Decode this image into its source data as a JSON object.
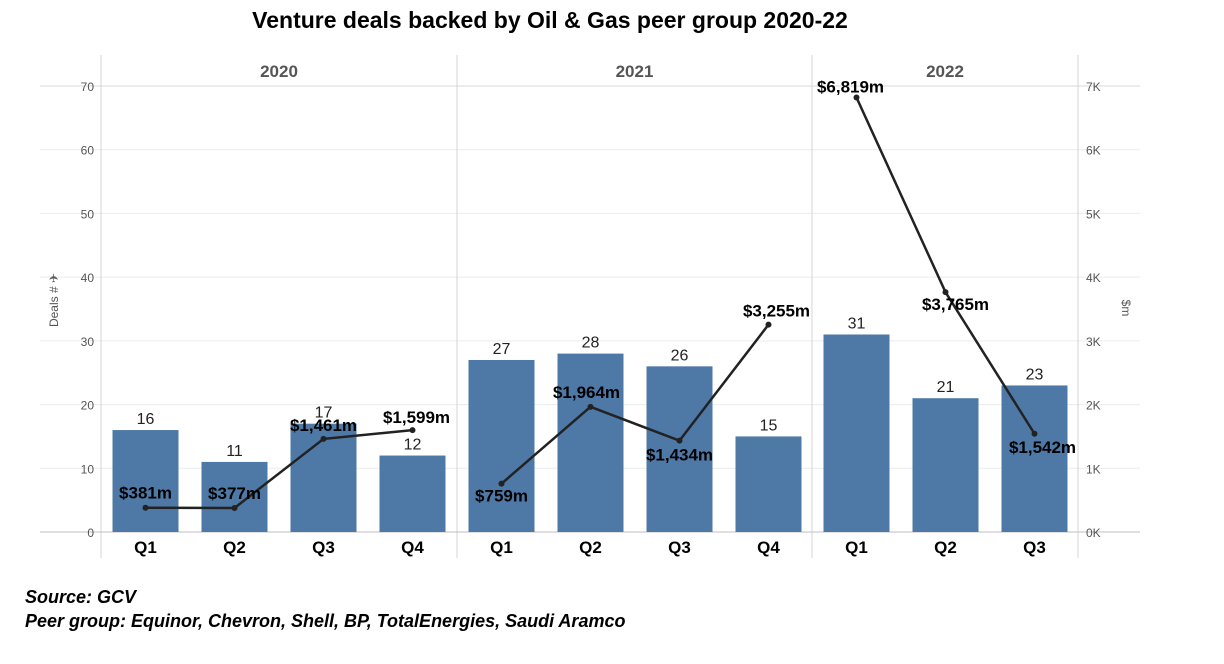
{
  "chart_data": {
    "type": "bar+line",
    "title": "Venture deals backed by Oil & Gas peer group 2020-22",
    "groups": [
      "2020",
      "2021",
      "2022"
    ],
    "categories": [
      {
        "group": "2020",
        "quarter": "Q1"
      },
      {
        "group": "2020",
        "quarter": "Q2"
      },
      {
        "group": "2020",
        "quarter": "Q3"
      },
      {
        "group": "2020",
        "quarter": "Q4"
      },
      {
        "group": "2021",
        "quarter": "Q1"
      },
      {
        "group": "2021",
        "quarter": "Q2"
      },
      {
        "group": "2021",
        "quarter": "Q3"
      },
      {
        "group": "2021",
        "quarter": "Q4"
      },
      {
        "group": "2022",
        "quarter": "Q1"
      },
      {
        "group": "2022",
        "quarter": "Q2"
      },
      {
        "group": "2022",
        "quarter": "Q3"
      }
    ],
    "bars": {
      "axis": "left",
      "values": [
        16,
        11,
        17,
        12,
        27,
        28,
        26,
        15,
        31,
        21,
        23
      ],
      "labels": [
        "16",
        "11",
        "17",
        "12",
        "27",
        "28",
        "26",
        "15",
        "31",
        "21",
        "23"
      ],
      "color": "#4e79a7"
    },
    "line": {
      "axis": "right",
      "values": [
        381,
        377,
        1461,
        1599,
        759,
        1964,
        1434,
        3255,
        6819,
        3765,
        1542
      ],
      "labels": [
        "$381m",
        "$377m",
        "$1,461m",
        "$1,599m",
        "$759m",
        "$1,964m",
        "$1,434m",
        "$3,255m",
        "$6,819m",
        "$3,765m",
        "$1,542m"
      ],
      "color": "#222222",
      "breaks_between_years": true
    },
    "left_axis": {
      "label": "Deals # ✈",
      "ylim": [
        0,
        70
      ],
      "ticks": [
        0,
        10,
        20,
        30,
        40,
        50,
        60,
        70
      ],
      "tick_labels": [
        "0",
        "10",
        "20",
        "30",
        "40",
        "50",
        "60",
        "70"
      ]
    },
    "right_axis": {
      "label": "$m",
      "ylim": [
        0,
        7000
      ],
      "ticks": [
        0,
        1000,
        2000,
        3000,
        4000,
        5000,
        6000,
        7000
      ],
      "tick_labels": [
        "0K",
        "1K",
        "2K",
        "3K",
        "4K",
        "5K",
        "6K",
        "7K"
      ]
    },
    "grid": true
  },
  "footer": {
    "source": "Source: GCV",
    "peer_group": "Peer group: Equinor, Chevron, Shell, BP, TotalEnergies, Saudi Aramco"
  }
}
